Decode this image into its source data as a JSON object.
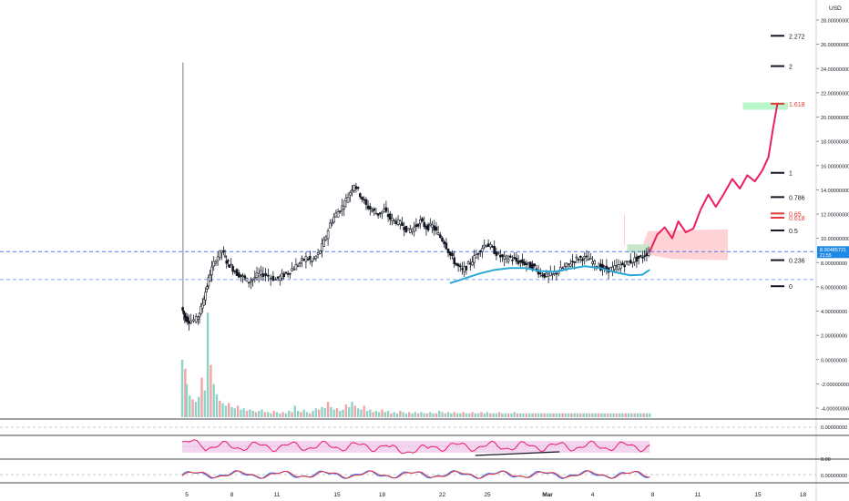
{
  "header": {
    "currency": "USD"
  },
  "colors": {
    "up": "#26a69a",
    "down": "#ef5350",
    "candle_body": "#131722",
    "projection": "#e91e63",
    "ma": "#29a8d8",
    "fib_red": "#e53935",
    "target_box": "#b9f6ca",
    "cloud": "#ffcdd2",
    "rsi_band": "#f3d5f0",
    "price_tag": "#1e88e5",
    "axis_text": "#131722"
  },
  "right_axis": {
    "labels": [
      "28.00000000",
      "26.00000000",
      "24.00000000",
      "22.00000000",
      "20.00000000",
      "18.00000000",
      "16.00000000",
      "14.00000000",
      "12.00000000",
      "10.00000000",
      "8.00000000",
      "6.00000000",
      "4.00000000",
      "2.00000000",
      "0.00000000",
      "-2.00000000",
      "-4.00000000"
    ],
    "current_price": "8.90485721",
    "current_sub": "21:55",
    "osc1_label": "0.00000000",
    "osc2_label": "0.00",
    "osc3_label": "0.00000000"
  },
  "fib_levels": [
    {
      "label": "2.272",
      "value": 26.7,
      "color": "#131722"
    },
    {
      "label": "2",
      "value": 24.2,
      "color": "#131722"
    },
    {
      "label": "1.618",
      "value": 21.1,
      "color": "#e53935"
    },
    {
      "label": "1",
      "value": 15.4,
      "color": "#131722"
    },
    {
      "label": "0.786",
      "value": 13.4,
      "color": "#131722"
    },
    {
      "label": "0.65",
      "value": 12.05,
      "color": "#e53935"
    },
    {
      "label": "0.618",
      "value": 11.7,
      "color": "#e53935"
    },
    {
      "label": "0.5",
      "value": 10.65,
      "color": "#131722"
    },
    {
      "label": "0.236",
      "value": 8.2,
      "color": "#131722"
    },
    {
      "label": "0",
      "value": 6.05,
      "color": "#131722"
    }
  ],
  "x_axis": {
    "labels": [
      {
        "text": "5",
        "day": 5
      },
      {
        "text": "8",
        "day": 8
      },
      {
        "text": "11",
        "day": 11
      },
      {
        "text": "15",
        "day": 15
      },
      {
        "text": "18",
        "day": 18
      },
      {
        "text": "22",
        "day": 22
      },
      {
        "text": "25",
        "day": 25
      },
      {
        "text": "Mar",
        "day": 29
      },
      {
        "text": "4",
        "day": 32
      },
      {
        "text": "8",
        "day": 36
      },
      {
        "text": "11",
        "day": 39
      },
      {
        "text": "15",
        "day": 43
      },
      {
        "text": "18",
        "day": 46
      }
    ]
  },
  "chart_data": {
    "type": "candlestick",
    "x_unit": "day",
    "ylim": [
      -5,
      29
    ],
    "dashed_levels": [
      8.9,
      6.6
    ],
    "close_path": [
      [
        4.7,
        4.3
      ],
      [
        4.9,
        3.5
      ],
      [
        5.2,
        3.2
      ],
      [
        5.7,
        3.3
      ],
      [
        6.0,
        4.2
      ],
      [
        6.3,
        5.6
      ],
      [
        6.6,
        7.1
      ],
      [
        7.0,
        8.3
      ],
      [
        7.4,
        9.0
      ],
      [
        7.7,
        8.1
      ],
      [
        8.0,
        7.7
      ],
      [
        8.4,
        7.1
      ],
      [
        8.8,
        6.8
      ],
      [
        9.2,
        6.4
      ],
      [
        9.6,
        6.8
      ],
      [
        10.0,
        7.1
      ],
      [
        10.5,
        6.9
      ],
      [
        11.0,
        6.6
      ],
      [
        11.4,
        6.9
      ],
      [
        11.8,
        7.2
      ],
      [
        12.2,
        7.6
      ],
      [
        12.6,
        8.0
      ],
      [
        13.0,
        8.4
      ],
      [
        13.4,
        8.1
      ],
      [
        13.8,
        8.7
      ],
      [
        14.2,
        9.7
      ],
      [
        14.6,
        11.2
      ],
      [
        15.0,
        12.0
      ],
      [
        15.4,
        12.6
      ],
      [
        15.8,
        13.5
      ],
      [
        16.2,
        14.5
      ],
      [
        16.6,
        13.6
      ],
      [
        17.0,
        12.7
      ],
      [
        17.4,
        12.3
      ],
      [
        17.8,
        12.0
      ],
      [
        18.2,
        12.3
      ],
      [
        18.6,
        11.6
      ],
      [
        19.0,
        11.4
      ],
      [
        19.4,
        11.1
      ],
      [
        19.8,
        10.6
      ],
      [
        20.2,
        10.9
      ],
      [
        20.6,
        11.4
      ],
      [
        21.0,
        10.9
      ],
      [
        21.4,
        11.0
      ],
      [
        21.8,
        10.3
      ],
      [
        22.2,
        9.7
      ],
      [
        22.6,
        8.6
      ],
      [
        23.0,
        7.8
      ],
      [
        23.4,
        7.3
      ],
      [
        23.8,
        7.8
      ],
      [
        24.2,
        8.4
      ],
      [
        24.6,
        9.1
      ],
      [
        25.0,
        9.6
      ],
      [
        25.4,
        9.1
      ],
      [
        25.8,
        8.6
      ],
      [
        26.2,
        8.3
      ],
      [
        26.6,
        8.4
      ],
      [
        27.0,
        8.1
      ],
      [
        27.4,
        8.0
      ],
      [
        27.8,
        7.8
      ],
      [
        28.2,
        7.6
      ],
      [
        28.6,
        7.1
      ],
      [
        29.0,
        6.9
      ],
      [
        29.4,
        7.0
      ],
      [
        29.8,
        7.3
      ],
      [
        30.2,
        7.6
      ],
      [
        30.6,
        8.0
      ],
      [
        31.0,
        8.3
      ],
      [
        31.4,
        8.4
      ],
      [
        31.8,
        8.3
      ],
      [
        32.2,
        7.9
      ],
      [
        32.6,
        7.6
      ],
      [
        33.0,
        7.4
      ],
      [
        33.4,
        7.5
      ],
      [
        33.8,
        7.7
      ],
      [
        34.2,
        7.9
      ],
      [
        34.6,
        8.1
      ],
      [
        35.0,
        8.3
      ],
      [
        35.4,
        8.5
      ],
      [
        35.8,
        8.9
      ]
    ],
    "volume": [
      [
        4.7,
        4.5
      ],
      [
        4.9,
        3.8
      ],
      [
        5.0,
        2.6
      ],
      [
        5.2,
        1.7
      ],
      [
        5.4,
        1.4
      ],
      [
        5.6,
        1.2
      ],
      [
        5.8,
        1.6
      ],
      [
        6.0,
        3.1
      ],
      [
        6.2,
        2.1
      ],
      [
        6.4,
        8.2
      ],
      [
        6.6,
        4.1
      ],
      [
        6.8,
        2.6
      ],
      [
        7.0,
        1.8
      ],
      [
        7.2,
        1.3
      ],
      [
        7.4,
        1.1
      ],
      [
        7.6,
        0.9
      ],
      [
        7.8,
        1.1
      ],
      [
        8.0,
        0.8
      ],
      [
        8.2,
        0.7
      ],
      [
        8.4,
        0.9
      ],
      [
        8.6,
        0.6
      ],
      [
        8.8,
        0.7
      ],
      [
        9.0,
        0.5
      ],
      [
        9.2,
        0.6
      ],
      [
        9.4,
        0.5
      ],
      [
        9.6,
        0.4
      ],
      [
        9.8,
        0.5
      ],
      [
        10.0,
        0.6
      ],
      [
        10.2,
        0.4
      ],
      [
        10.4,
        0.4
      ],
      [
        10.6,
        0.3
      ],
      [
        10.8,
        0.5
      ],
      [
        11.0,
        0.4
      ],
      [
        11.2,
        0.3
      ],
      [
        11.4,
        0.4
      ],
      [
        11.6,
        0.3
      ],
      [
        11.8,
        0.5
      ],
      [
        12.0,
        0.4
      ],
      [
        12.2,
        0.9
      ],
      [
        12.4,
        0.5
      ],
      [
        12.6,
        0.4
      ],
      [
        12.8,
        0.6
      ],
      [
        13.0,
        0.4
      ],
      [
        13.2,
        0.3
      ],
      [
        13.4,
        0.5
      ],
      [
        13.6,
        0.7
      ],
      [
        13.8,
        0.6
      ],
      [
        14.0,
        0.8
      ],
      [
        14.2,
        0.7
      ],
      [
        14.4,
        1.2
      ],
      [
        14.6,
        0.8
      ],
      [
        14.8,
        0.6
      ],
      [
        15.0,
        0.7
      ],
      [
        15.2,
        0.5
      ],
      [
        15.4,
        0.6
      ],
      [
        15.6,
        1.0
      ],
      [
        15.8,
        0.8
      ],
      [
        16.0,
        1.2
      ],
      [
        16.2,
        0.9
      ],
      [
        16.4,
        0.7
      ],
      [
        16.6,
        0.6
      ],
      [
        16.8,
        0.9
      ],
      [
        17.0,
        0.5
      ],
      [
        17.2,
        0.6
      ],
      [
        17.4,
        0.4
      ],
      [
        17.6,
        0.5
      ],
      [
        17.8,
        0.4
      ],
      [
        18.0,
        0.6
      ],
      [
        18.2,
        0.4
      ],
      [
        18.4,
        0.5
      ],
      [
        18.6,
        0.3
      ],
      [
        18.8,
        0.4
      ],
      [
        19.0,
        0.3
      ],
      [
        19.2,
        0.5
      ],
      [
        19.4,
        0.4
      ],
      [
        19.6,
        0.3
      ],
      [
        19.8,
        0.4
      ],
      [
        20.0,
        0.3
      ],
      [
        20.2,
        0.4
      ],
      [
        20.4,
        0.3
      ],
      [
        20.6,
        0.4
      ],
      [
        20.8,
        0.3
      ],
      [
        21.0,
        0.3
      ],
      [
        21.2,
        0.4
      ],
      [
        21.4,
        0.3
      ],
      [
        21.6,
        0.3
      ],
      [
        21.8,
        0.5
      ],
      [
        22.0,
        0.4
      ],
      [
        22.2,
        0.3
      ],
      [
        22.4,
        0.4
      ],
      [
        22.6,
        0.3
      ],
      [
        22.8,
        0.4
      ],
      [
        23.0,
        0.3
      ],
      [
        23.2,
        0.3
      ],
      [
        23.4,
        0.4
      ],
      [
        23.6,
        0.3
      ],
      [
        23.8,
        0.3
      ],
      [
        24.0,
        0.4
      ],
      [
        24.2,
        0.3
      ],
      [
        24.4,
        0.3
      ],
      [
        24.6,
        0.4
      ],
      [
        24.8,
        0.3
      ],
      [
        25.0,
        0.4
      ],
      [
        25.2,
        0.3
      ],
      [
        25.4,
        0.3
      ],
      [
        25.6,
        0.3
      ],
      [
        25.8,
        0.4
      ],
      [
        26.0,
        0.3
      ],
      [
        26.2,
        0.3
      ],
      [
        26.4,
        0.3
      ],
      [
        26.6,
        0.3
      ],
      [
        26.8,
        0.4
      ],
      [
        27.0,
        0.3
      ],
      [
        27.2,
        0.3
      ],
      [
        27.4,
        0.3
      ],
      [
        27.6,
        0.3
      ],
      [
        27.8,
        0.3
      ],
      [
        28.0,
        0.3
      ],
      [
        28.2,
        0.3
      ],
      [
        28.4,
        0.3
      ],
      [
        28.6,
        0.3
      ],
      [
        28.8,
        0.3
      ],
      [
        29.0,
        0.3
      ],
      [
        29.2,
        0.3
      ],
      [
        29.4,
        0.3
      ],
      [
        29.6,
        0.3
      ],
      [
        29.8,
        0.3
      ],
      [
        30.0,
        0.3
      ],
      [
        30.2,
        0.3
      ],
      [
        30.4,
        0.3
      ],
      [
        30.6,
        0.3
      ],
      [
        30.8,
        0.3
      ],
      [
        31.0,
        0.3
      ],
      [
        31.2,
        0.3
      ],
      [
        31.4,
        0.3
      ],
      [
        31.6,
        0.3
      ],
      [
        31.8,
        0.3
      ],
      [
        32.0,
        0.3
      ],
      [
        32.2,
        0.3
      ],
      [
        32.4,
        0.3
      ],
      [
        32.6,
        0.3
      ],
      [
        32.8,
        0.3
      ],
      [
        33.0,
        0.3
      ],
      [
        33.2,
        0.3
      ],
      [
        33.4,
        0.3
      ],
      [
        33.6,
        0.3
      ],
      [
        33.8,
        0.3
      ],
      [
        34.0,
        0.3
      ],
      [
        34.2,
        0.3
      ],
      [
        34.4,
        0.3
      ],
      [
        34.6,
        0.3
      ],
      [
        34.8,
        0.3
      ],
      [
        35.0,
        0.3
      ],
      [
        35.2,
        0.3
      ],
      [
        35.4,
        0.3
      ],
      [
        35.6,
        0.3
      ],
      [
        35.8,
        0.3
      ]
    ],
    "ma_line": [
      [
        22.5,
        6.3
      ],
      [
        23.5,
        6.7
      ],
      [
        24.5,
        7.1
      ],
      [
        25.5,
        7.4
      ],
      [
        26.5,
        7.55
      ],
      [
        27.5,
        7.55
      ],
      [
        28.5,
        7.3
      ],
      [
        29.5,
        7.25
      ],
      [
        30.5,
        7.5
      ],
      [
        31.5,
        7.7
      ],
      [
        32.5,
        7.55
      ],
      [
        33.5,
        7.2
      ],
      [
        34.5,
        6.95
      ],
      [
        35.3,
        7.0
      ],
      [
        35.8,
        7.4
      ]
    ],
    "projection": [
      [
        35.8,
        8.9
      ],
      [
        36.3,
        10.3
      ],
      [
        36.8,
        10.9
      ],
      [
        37.3,
        10.0
      ],
      [
        37.7,
        11.4
      ],
      [
        38.2,
        10.5
      ],
      [
        38.7,
        10.8
      ],
      [
        39.2,
        12.4
      ],
      [
        39.7,
        13.6
      ],
      [
        40.2,
        12.6
      ],
      [
        40.7,
        13.6
      ],
      [
        41.3,
        14.9
      ],
      [
        41.8,
        14.1
      ],
      [
        42.3,
        15.2
      ],
      [
        42.8,
        14.7
      ],
      [
        43.3,
        15.6
      ],
      [
        43.7,
        16.7
      ],
      [
        44.0,
        19.0
      ],
      [
        44.3,
        21.1
      ]
    ],
    "green_box": {
      "x0": 42.0,
      "x1": 45.0,
      "y0": 20.6,
      "y1": 21.2
    },
    "cloud": {
      "x0": 35.3,
      "x1": 41.0,
      "top": 10.75,
      "bottom": 8.2
    },
    "small_box": {
      "x0": 34.3,
      "x1": 35.8,
      "y0": 8.8,
      "y1": 9.5
    }
  }
}
